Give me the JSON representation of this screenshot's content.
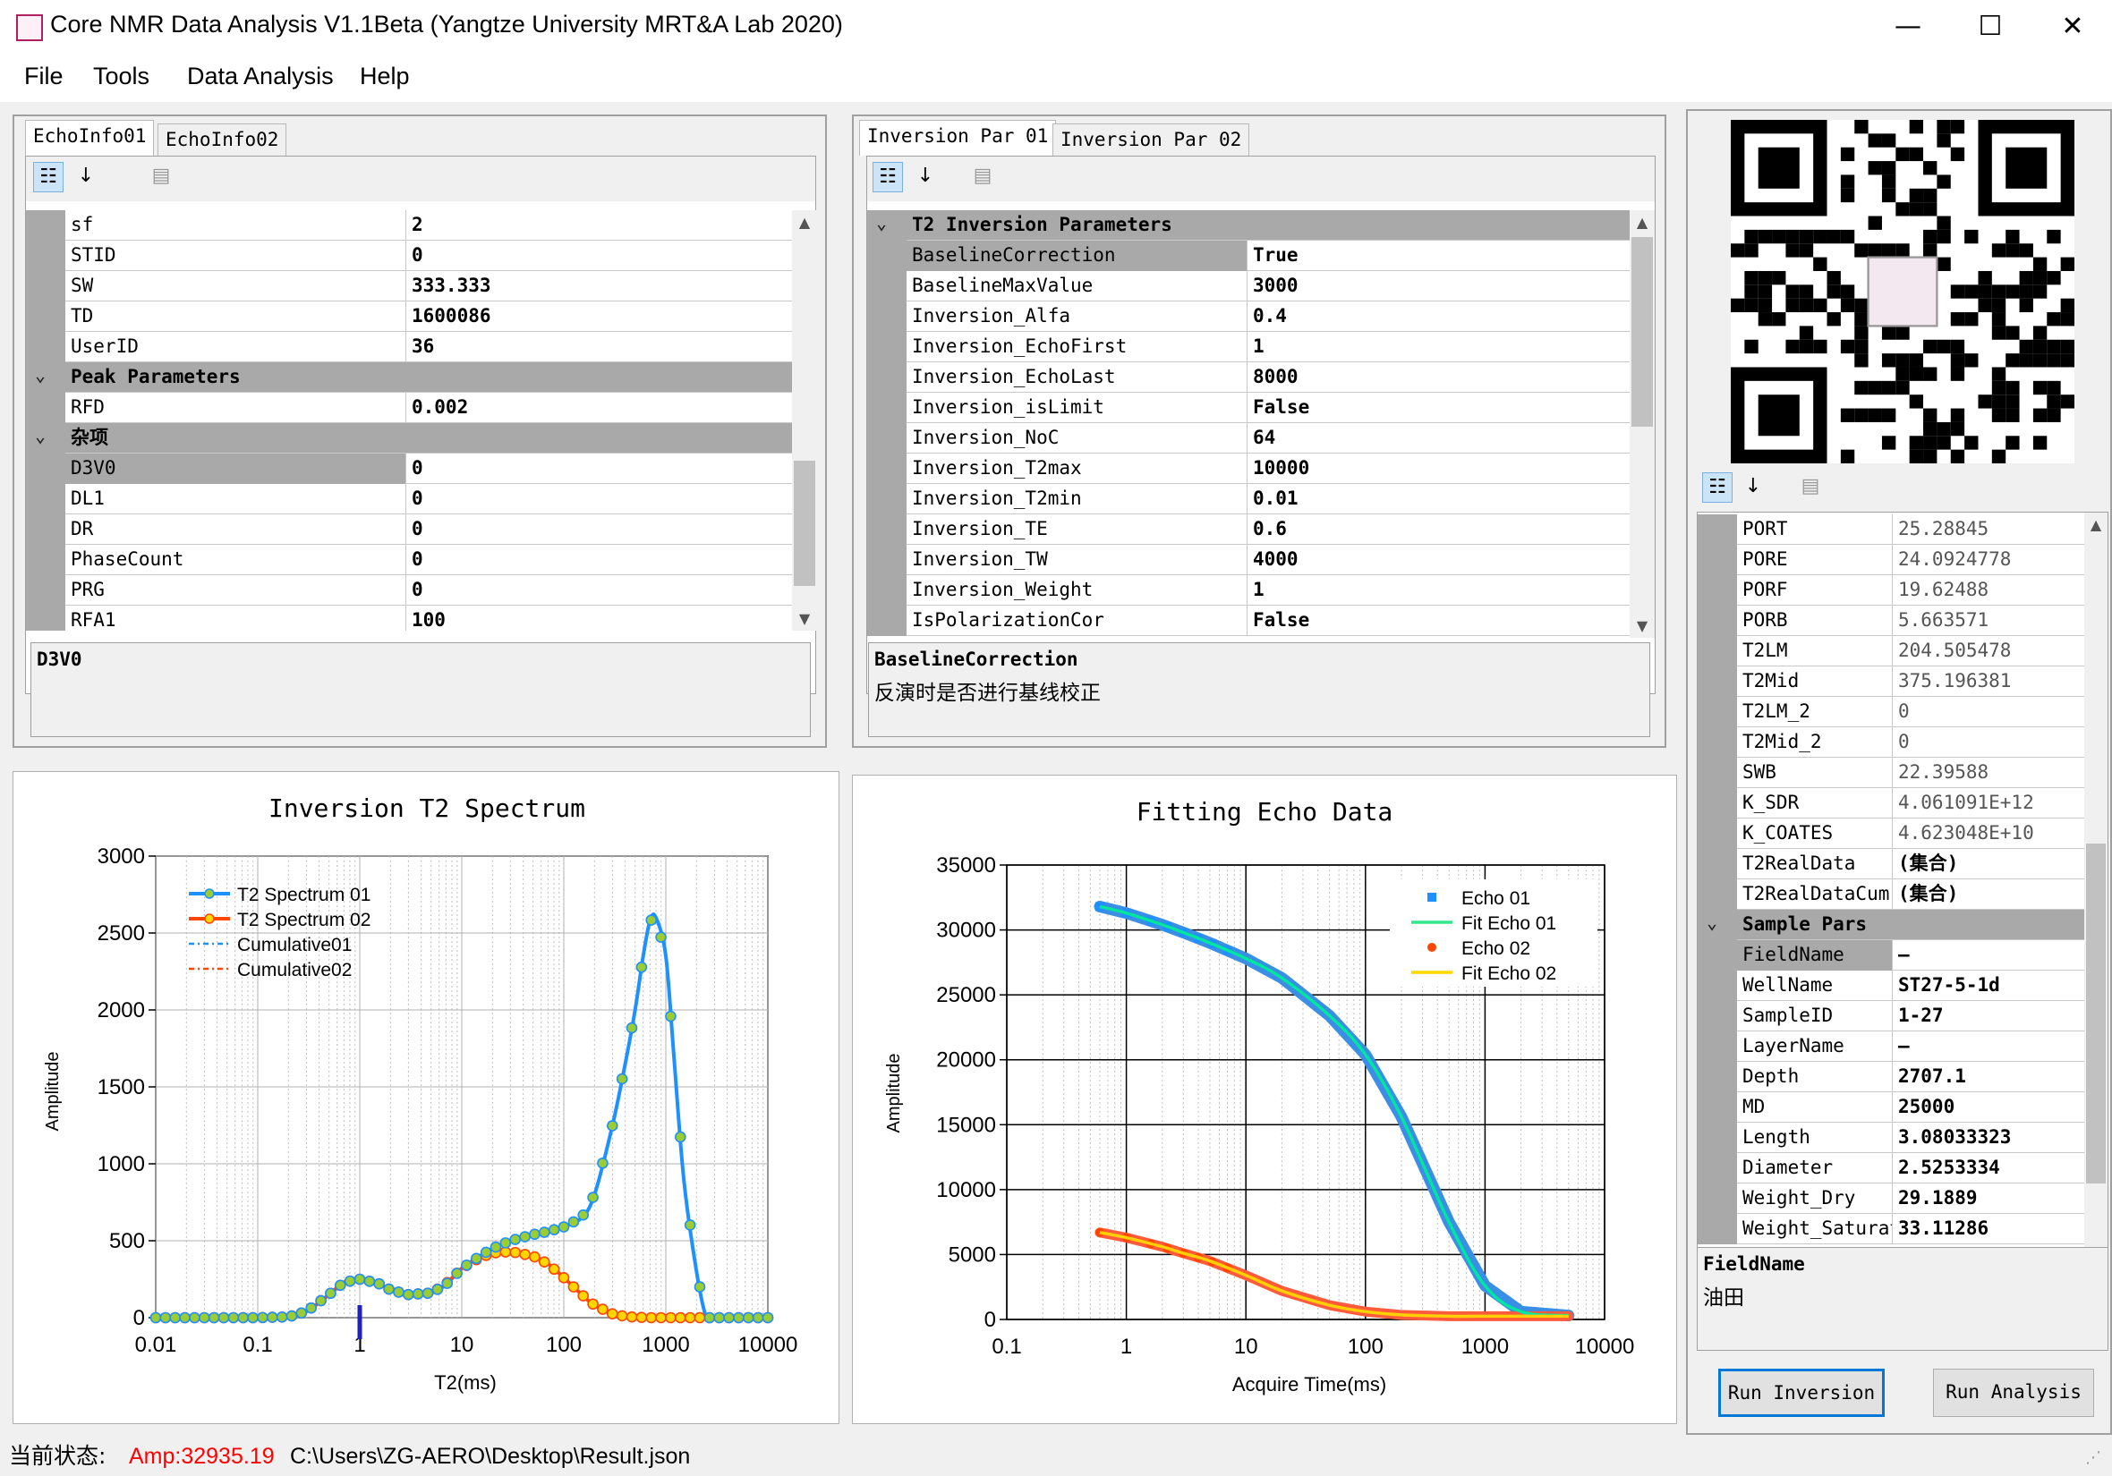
{
  "window": {
    "title": "Core NMR Data Analysis V1.1Beta (Yangtze University MRT&A Lab 2020)",
    "min": "—",
    "max": "☐",
    "close": "✕"
  },
  "menu": {
    "file": "File",
    "tools": "Tools",
    "data_analysis": "Data Analysis",
    "help": "Help"
  },
  "echo_panel": {
    "tabs": [
      "EchoInfo01",
      "EchoInfo02"
    ],
    "rows": [
      {
        "type": "prop",
        "name": "sf",
        "value": "2"
      },
      {
        "type": "prop",
        "name": "STID",
        "value": "0"
      },
      {
        "type": "prop",
        "name": "SW",
        "value": "333.333"
      },
      {
        "type": "prop",
        "name": "TD",
        "value": "1600086"
      },
      {
        "type": "prop",
        "name": "UserID",
        "value": "36"
      },
      {
        "type": "cat",
        "name": "Peak Parameters",
        "value": ""
      },
      {
        "type": "prop",
        "name": "RFD",
        "value": "0.002"
      },
      {
        "type": "cat",
        "name": "杂项",
        "value": ""
      },
      {
        "type": "prop",
        "name": "D3V0",
        "value": "0",
        "selected": true
      },
      {
        "type": "prop",
        "name": "DL1",
        "value": "0"
      },
      {
        "type": "prop",
        "name": "DR",
        "value": "0"
      },
      {
        "type": "prop",
        "name": "PhaseCount",
        "value": "0"
      },
      {
        "type": "prop",
        "name": "PRG",
        "value": "0"
      },
      {
        "type": "prop",
        "name": "RFA1",
        "value": "100"
      }
    ],
    "desc_title": "D3V0",
    "desc_text": ""
  },
  "inversion_panel": {
    "tabs": [
      "Inversion Par 01",
      "Inversion Par 02"
    ],
    "rows": [
      {
        "type": "cat",
        "name": "T2 Inversion Parameters",
        "value": ""
      },
      {
        "type": "prop",
        "name": "BaselineCorrection",
        "value": "True",
        "selected": true
      },
      {
        "type": "prop",
        "name": "BaselineMaxValue",
        "value": "3000"
      },
      {
        "type": "prop",
        "name": "Inversion_Alfa",
        "value": "0.4"
      },
      {
        "type": "prop",
        "name": "Inversion_EchoFirst",
        "value": "1"
      },
      {
        "type": "prop",
        "name": "Inversion_EchoLast",
        "value": "8000"
      },
      {
        "type": "prop",
        "name": "Inversion_isLimit",
        "value": "False"
      },
      {
        "type": "prop",
        "name": "Inversion_NoC",
        "value": "64"
      },
      {
        "type": "prop",
        "name": "Inversion_T2max",
        "value": "10000"
      },
      {
        "type": "prop",
        "name": "Inversion_T2min",
        "value": "0.01"
      },
      {
        "type": "prop",
        "name": "Inversion_TE",
        "value": "0.6"
      },
      {
        "type": "prop",
        "name": "Inversion_TW",
        "value": "4000"
      },
      {
        "type": "prop",
        "name": "Inversion_Weight",
        "value": "1"
      },
      {
        "type": "prop",
        "name": "IsPolarizationCor",
        "value": "False"
      }
    ],
    "desc_title": "BaselineCorrection",
    "desc_text": "反演时是否进行基线校正"
  },
  "result_panel": {
    "rows": [
      {
        "type": "prop",
        "name": "PORT",
        "value": "25.28845",
        "light": true
      },
      {
        "type": "prop",
        "name": "PORE",
        "value": "24.0924778",
        "light": true
      },
      {
        "type": "prop",
        "name": "PORF",
        "value": "19.62488",
        "light": true
      },
      {
        "type": "prop",
        "name": "PORB",
        "value": "5.663571",
        "light": true
      },
      {
        "type": "prop",
        "name": "T2LM",
        "value": "204.505478",
        "light": true
      },
      {
        "type": "prop",
        "name": "T2Mid",
        "value": "375.196381",
        "light": true
      },
      {
        "type": "prop",
        "name": "T2LM_2",
        "value": "0",
        "light": true
      },
      {
        "type": "prop",
        "name": "T2Mid_2",
        "value": "0",
        "light": true
      },
      {
        "type": "prop",
        "name": "SWB",
        "value": "22.39588",
        "light": true
      },
      {
        "type": "prop",
        "name": "K_SDR",
        "value": "4.061091E+12",
        "light": true
      },
      {
        "type": "prop",
        "name": "K_COATES",
        "value": "4.623048E+10",
        "light": true
      },
      {
        "type": "prop",
        "name": "T2RealData",
        "value": "(集合)"
      },
      {
        "type": "prop",
        "name": "T2RealDataCum",
        "value": "(集合)"
      },
      {
        "type": "cat",
        "name": "Sample Pars",
        "value": ""
      },
      {
        "type": "prop",
        "name": "FieldName",
        "value": "—",
        "selected": true
      },
      {
        "type": "prop",
        "name": "WellName",
        "value": "ST27-5-1d"
      },
      {
        "type": "prop",
        "name": "SampleID",
        "value": "1-27"
      },
      {
        "type": "prop",
        "name": "LayerName",
        "value": "—"
      },
      {
        "type": "prop",
        "name": "Depth",
        "value": "2707.1"
      },
      {
        "type": "prop",
        "name": "MD",
        "value": "25000"
      },
      {
        "type": "prop",
        "name": "Length",
        "value": "3.08033323"
      },
      {
        "type": "prop",
        "name": "Diameter",
        "value": "2.5253334"
      },
      {
        "type": "prop",
        "name": "Weight_Dry",
        "value": "29.1889"
      },
      {
        "type": "prop",
        "name": "Weight_Saturat",
        "value": "33.11286"
      }
    ],
    "desc_title": "FieldName",
    "desc_text": "油田",
    "run_inversion": "Run Inversion",
    "run_analysis": "Run Analysis"
  },
  "status": {
    "label": "当前状态:",
    "amp": "Amp:32935.19",
    "path": "C:\\Users\\ZG-AERO\\Desktop\\Result.json"
  },
  "colors": {
    "blue": "#1e90ff",
    "orange": "#ff4500",
    "green": "#32cd32",
    "yellow": "#ffd700",
    "marker_fill": "#9acd32"
  },
  "chart_data": [
    {
      "type": "line",
      "title": "Inversion T2 Spectrum",
      "xlabel": "T2(ms)",
      "ylabel": "Amplitude",
      "x_scale": "log",
      "xlim": [
        0.01,
        10000
      ],
      "ylim": [
        0,
        3000
      ],
      "x_ticks": [
        "0.01",
        "0.1",
        "1",
        "10",
        "100",
        "1000",
        "10000"
      ],
      "y_ticks": [
        "0",
        "500",
        "1000",
        "1500",
        "2000",
        "2500",
        "3000"
      ],
      "legend": [
        "T2 Spectrum 01",
        "T2 Spectrum 02",
        "Cumulative01",
        "Cumulative02"
      ],
      "legend_position": "top-left",
      "grid": true,
      "series": [
        {
          "name": "T2 Spectrum 01",
          "x": [
            0.01,
            0.02,
            0.05,
            0.1,
            0.2,
            0.3,
            0.5,
            0.7,
            1,
            1.5,
            2,
            3,
            5,
            7,
            10,
            15,
            20,
            30,
            50,
            70,
            100,
            150,
            200,
            300,
            400,
            500,
            600,
            700,
            800,
            1000,
            1200,
            1500,
            2000,
            2500,
            3000,
            5000,
            10000
          ],
          "y": [
            0,
            0,
            0,
            0,
            5,
            40,
            150,
            230,
            250,
            225,
            180,
            150,
            160,
            215,
            320,
            400,
            450,
            500,
            540,
            560,
            590,
            650,
            800,
            1250,
            1650,
            2000,
            2350,
            2580,
            2600,
            2350,
            1700,
            900,
            300,
            0,
            0,
            0,
            0
          ]
        },
        {
          "name": "T2 Spectrum 02",
          "x": [
            0.01,
            0.02,
            0.05,
            0.1,
            0.2,
            0.3,
            0.5,
            0.7,
            1,
            1.5,
            2,
            3,
            5,
            7,
            10,
            15,
            20,
            30,
            50,
            70,
            100,
            150,
            200,
            300,
            400,
            500,
            700,
            1000,
            2000,
            5000,
            10000
          ],
          "y": [
            0,
            0,
            0,
            0,
            5,
            40,
            150,
            230,
            250,
            225,
            180,
            150,
            160,
            220,
            320,
            390,
            420,
            430,
            400,
            350,
            260,
            150,
            80,
            25,
            8,
            3,
            0,
            0,
            0,
            0,
            0
          ]
        }
      ],
      "marker": {
        "value": 1,
        "label": "1"
      }
    },
    {
      "type": "scatter",
      "title": "Fitting Echo Data",
      "xlabel": "Acquire Time(ms)",
      "ylabel": "Amplitude",
      "x_scale": "log",
      "xlim": [
        0.1,
        10000
      ],
      "ylim": [
        0,
        35000
      ],
      "x_ticks": [
        "0.1",
        "1",
        "10",
        "100",
        "1000",
        "10000"
      ],
      "y_ticks": [
        "0",
        "5000",
        "10000",
        "15000",
        "20000",
        "25000",
        "30000",
        "35000"
      ],
      "legend": [
        "Echo 01",
        "Fit Echo 01",
        "Echo 02",
        "Fit Echo 02"
      ],
      "legend_position": "top-right",
      "grid": true,
      "series": [
        {
          "name": "Fit Echo 01",
          "x": [
            0.6,
            1,
            2,
            3,
            5,
            10,
            20,
            50,
            100,
            200,
            500,
            1000,
            2000,
            5000
          ],
          "y": [
            31800,
            31300,
            30400,
            29800,
            29000,
            27800,
            26300,
            23400,
            20400,
            15600,
            7500,
            2600,
            600,
            300
          ]
        },
        {
          "name": "Fit Echo 02",
          "x": [
            0.6,
            1,
            2,
            3,
            5,
            10,
            20,
            50,
            100,
            200,
            500,
            1000,
            2000,
            5000
          ],
          "y": [
            6700,
            6300,
            5600,
            5100,
            4500,
            3400,
            2200,
            1100,
            600,
            350,
            250,
            250,
            250,
            250
          ]
        }
      ]
    }
  ]
}
